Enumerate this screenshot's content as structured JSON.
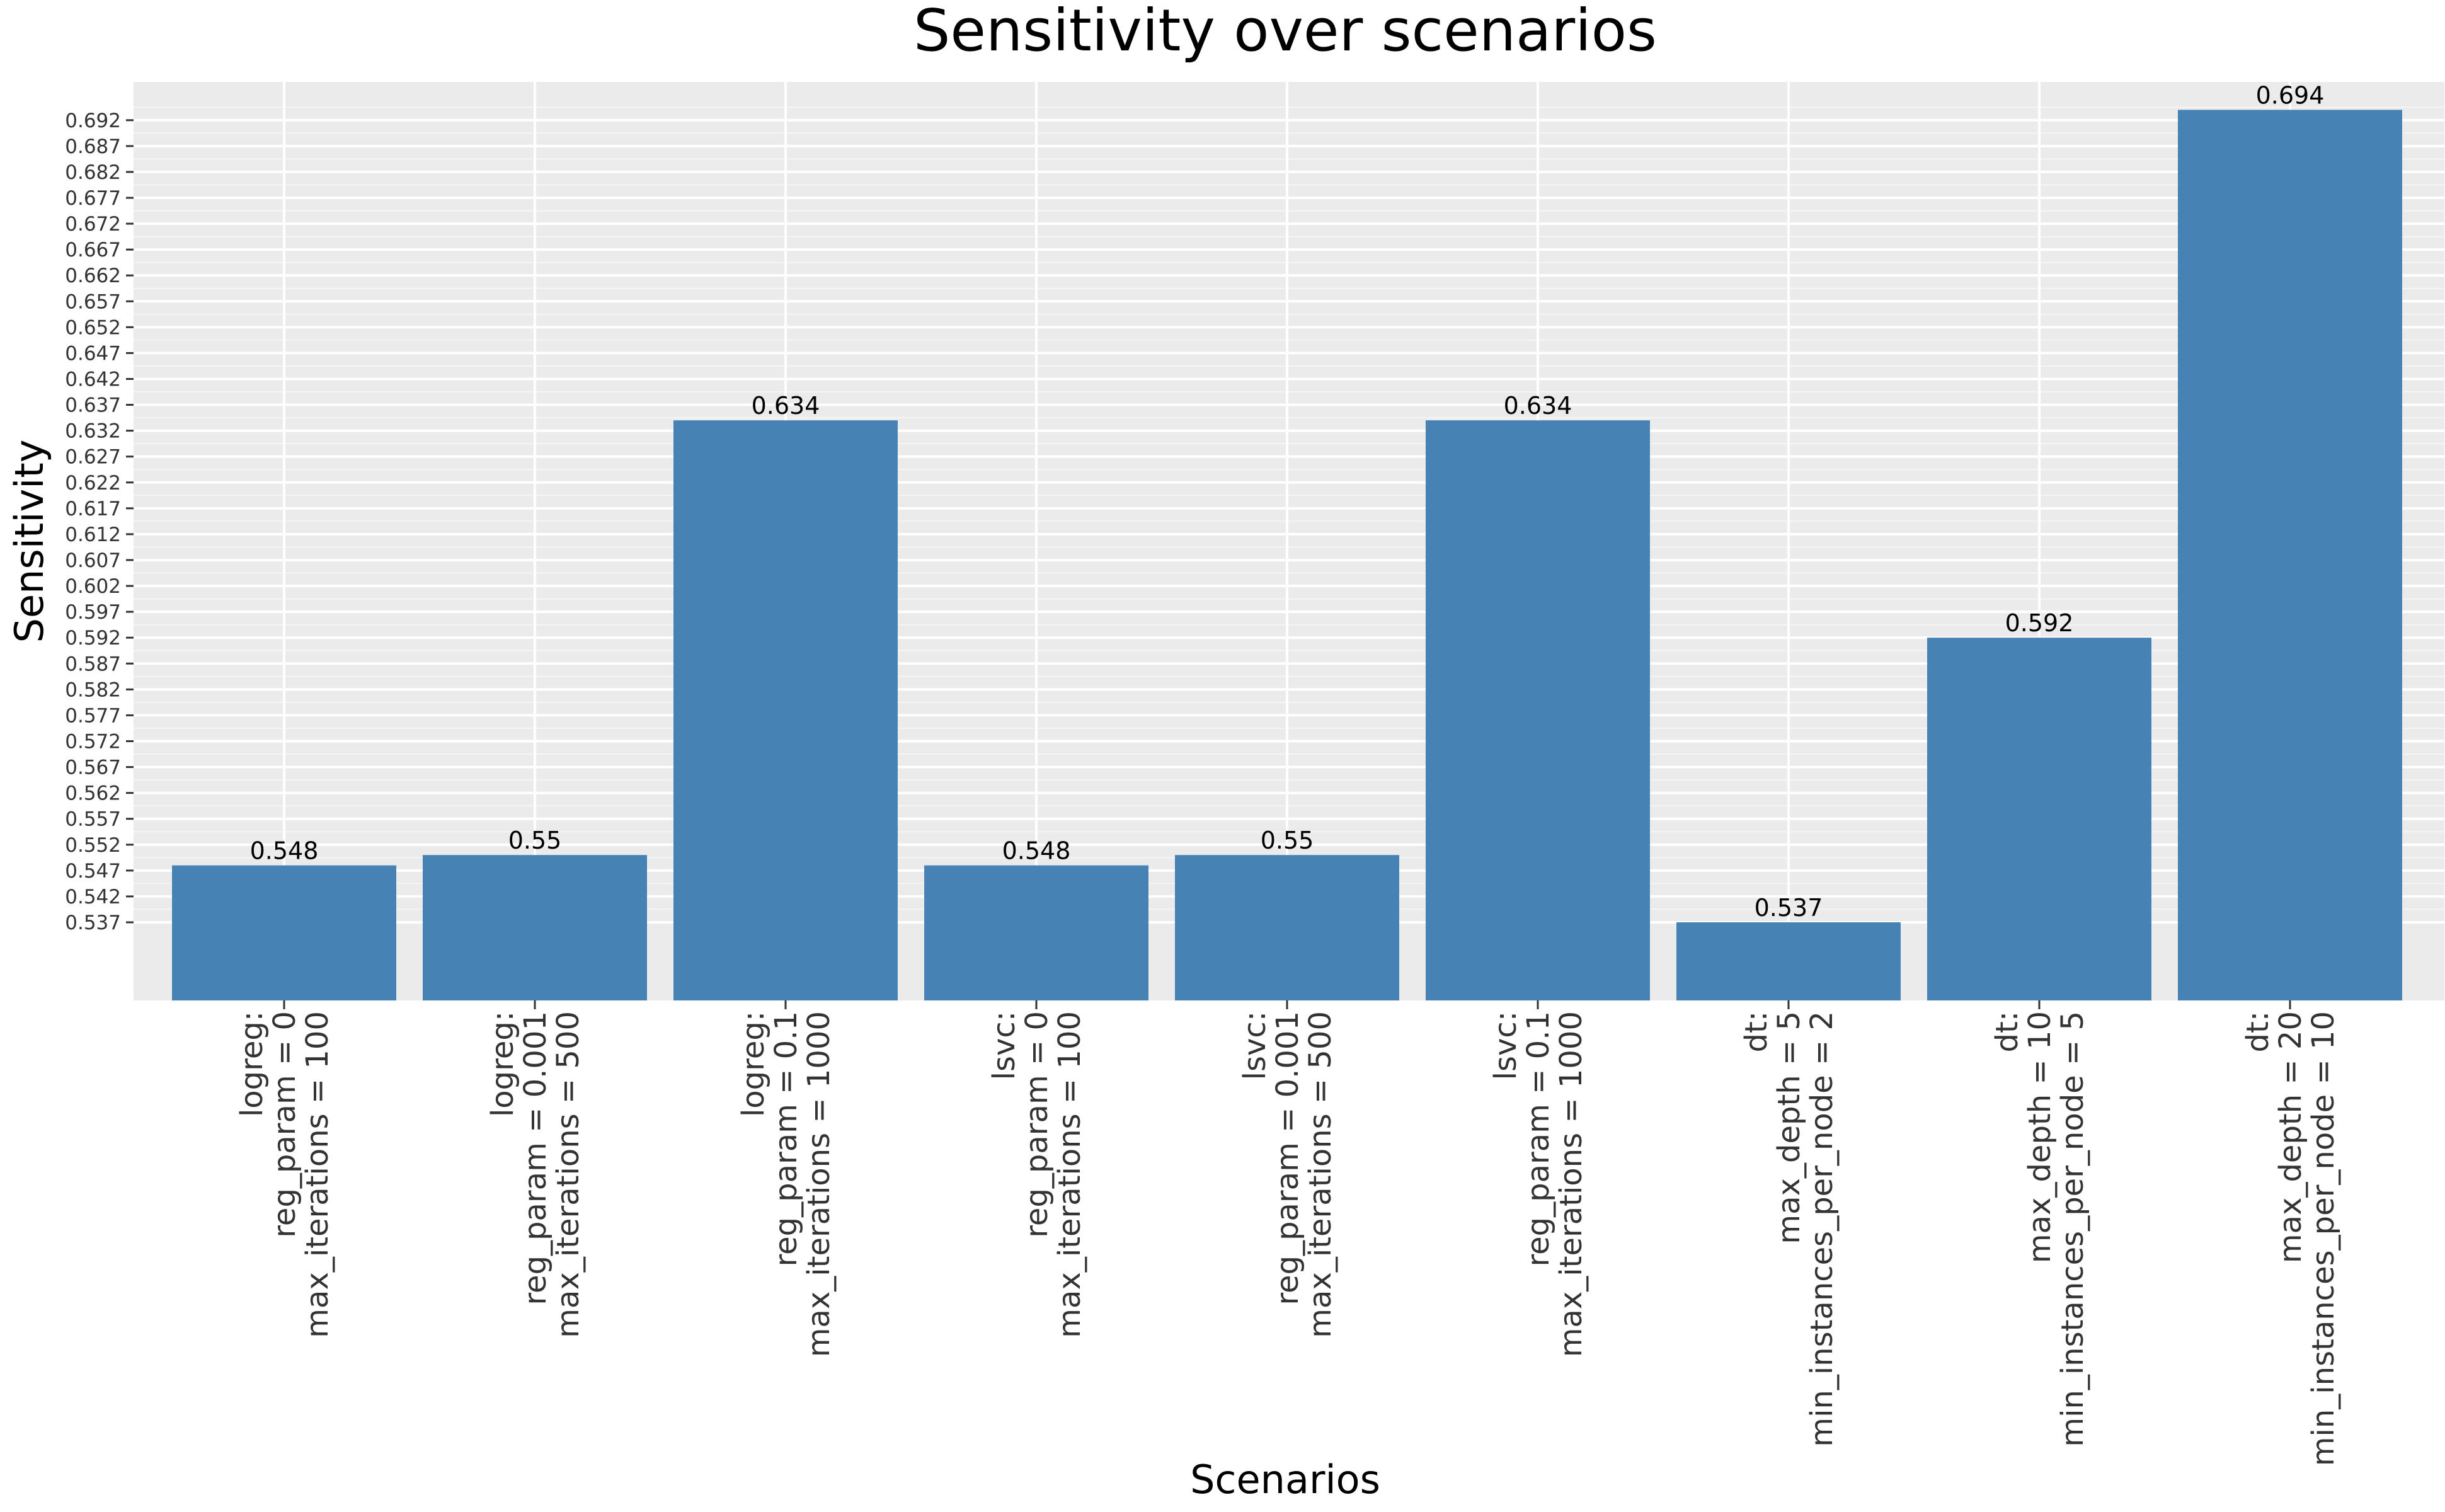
{
  "chart_data": {
    "type": "bar",
    "title": "Sensitivity over scenarios",
    "xlabel": "Scenarios",
    "ylabel": "Sensitivity",
    "categories": [
      [
        "logreg:",
        "reg_param = 0",
        "max_iterations = 100"
      ],
      [
        "logreg:",
        "reg_param = 0.001",
        "max_iterations = 500"
      ],
      [
        "logreg:",
        "reg_param = 0.1",
        "max_iterations = 1000"
      ],
      [
        "lsvc:",
        "reg_param = 0",
        "max_iterations = 100"
      ],
      [
        "lsvc:",
        "reg_param = 0.001",
        "max_iterations = 500"
      ],
      [
        "lsvc:",
        "reg_param = 0.1",
        "max_iterations = 1000"
      ],
      [
        "dt:",
        "max_depth = 5",
        "min_instances_per_node = 2"
      ],
      [
        "dt:",
        "max_depth = 10",
        "min_instances_per_node = 5"
      ],
      [
        "dt:",
        "max_depth = 20",
        "min_instances_per_node = 10"
      ]
    ],
    "values": [
      0.548,
      0.55,
      0.634,
      0.548,
      0.55,
      0.634,
      0.537,
      0.592,
      0.694
    ],
    "value_labels": [
      "0.548",
      "0.55",
      "0.634",
      "0.548",
      "0.55",
      "0.634",
      "0.537",
      "0.592",
      "0.694"
    ],
    "yticks": [
      "0.537",
      "0.542",
      "0.547",
      "0.552",
      "0.557",
      "0.562",
      "0.567",
      "0.572",
      "0.577",
      "0.582",
      "0.587",
      "0.592",
      "0.597",
      "0.602",
      "0.607",
      "0.612",
      "0.617",
      "0.622",
      "0.627",
      "0.632",
      "0.637",
      "0.642",
      "0.647",
      "0.652",
      "0.657",
      "0.662",
      "0.667",
      "0.672",
      "0.677",
      "0.682",
      "0.687",
      "0.692"
    ],
    "ylim": [
      0.5219,
      0.6994
    ],
    "bar_color": "#4682b4",
    "panel_background": "#ebebeb",
    "grid": true,
    "legend": "none"
  }
}
